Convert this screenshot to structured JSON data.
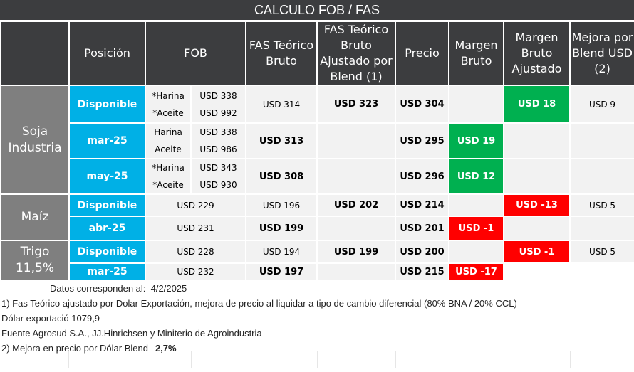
{
  "title": "CALCULO FOB / FAS",
  "headers": {
    "product": "",
    "posicion": "Posición",
    "fob": "FOB",
    "fas": "FAS Teórico Bruto",
    "fas_aj": "FAS Teórico Bruto Ajustado por Blend (1)",
    "precio": "Precio",
    "margen": "Margen Bruto",
    "margen_aj": "Margen Bruto Ajustado",
    "mejora": "Mejora por Blend USD (2)"
  },
  "products": {
    "soja": "Soja Industria",
    "maiz": "Maíz",
    "trigo": "Trigo 11,5%"
  },
  "rows": [
    {
      "pos": "Disponible",
      "fob_l1": "*Harina",
      "fob_v1": "USD 338",
      "fob_l2": "*Aceite",
      "fob_v2": "USD 992",
      "fas": "USD 314",
      "fas_aj": "USD 323",
      "precio": "USD 304",
      "margen": "",
      "margen_aj": "USD 18",
      "mejora": "USD 9"
    },
    {
      "pos": "mar-25",
      "fob_l1": "Harina",
      "fob_v1": "USD 338",
      "fob_l2": "Aceite",
      "fob_v2": "USD 986",
      "fas": "USD 313",
      "fas_aj": "",
      "precio": "USD 295",
      "margen": "USD 19",
      "margen_aj": "",
      "mejora": ""
    },
    {
      "pos": "may-25",
      "fob_l1": "*Harina",
      "fob_v1": "USD 343",
      "fob_l2": "*Aceite",
      "fob_v2": "USD 930",
      "fas": "USD 308",
      "fas_aj": "",
      "precio": "USD 296",
      "margen": "USD 12",
      "margen_aj": "",
      "mejora": ""
    },
    {
      "pos": "Disponible",
      "fob": "USD 229",
      "fas": "USD 196",
      "fas_aj": "USD 202",
      "precio": "USD 214",
      "margen": "",
      "margen_aj": "USD -13",
      "mejora": "USD 5"
    },
    {
      "pos": "abr-25",
      "fob": "USD 231",
      "fas": "USD 199",
      "fas_aj": "",
      "precio": "USD 201",
      "margen": "USD -1",
      "margen_aj": "",
      "mejora": ""
    },
    {
      "pos": "Disponible",
      "fob": "USD 228",
      "fas": "USD 194",
      "fas_aj": "USD 199",
      "precio": "USD 200",
      "margen": "",
      "margen_aj": "USD -1",
      "mejora": "USD 5"
    },
    {
      "pos": "mar-25",
      "fob": "USD 232",
      "fas": "USD 197",
      "fas_aj": "",
      "precio": "USD 215",
      "margen": "USD -17",
      "margen_aj": "",
      "mejora": ""
    }
  ],
  "footer": {
    "date_label": "Datos corresponden al:",
    "date": "4/2/2025",
    "note1": "1) Fas Teórico ajustado por Dolar Exportación, mejora de precio al liquidar a tipo de cambio diferencial (80% BNA / 20% CCL)",
    "dolar": "Dólar exportació 1079,9",
    "fuente": "Fuente Agrosud S.A., JJ.Hinrichsen y Miniterio de Agroindustria",
    "note2": "2) Mejora en precio por Dólar Blend",
    "blend_pct": "2,7%"
  },
  "colors": {
    "header": "#3c3d3f",
    "product": "#7f7f7f",
    "position": "#00b0e6",
    "positive": "#00b050",
    "negative": "#ff0000"
  }
}
